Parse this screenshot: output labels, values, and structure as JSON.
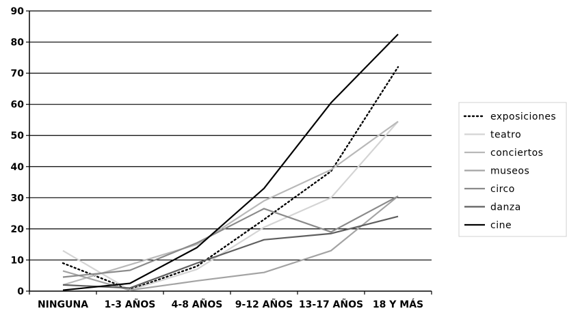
{
  "chart_data": {
    "type": "line",
    "title": "",
    "xlabel": "",
    "ylabel": "",
    "ylim": [
      0,
      90
    ],
    "yticks": [
      0,
      10,
      20,
      30,
      40,
      50,
      60,
      70,
      80,
      90
    ],
    "grid": "horizontal",
    "legend_position": "right",
    "categories": [
      "NINGUNA",
      "1-3 AÑOS",
      "4-8 AÑOS",
      "9-12 AÑOS",
      "13-17 AÑOS",
      "18 Y MÁS"
    ],
    "series": [
      {
        "name": "exposiciones",
        "color": "#000000",
        "dash": "dotted",
        "values": [
          9,
          0.5,
          8,
          23,
          38.5,
          72
        ]
      },
      {
        "name": "teatro",
        "color": "#d4d4d4",
        "dash": "solid",
        "values": [
          13,
          0.3,
          7,
          20.5,
          30,
          54.5
        ]
      },
      {
        "name": "conciertos",
        "color": "#b8b8b8",
        "dash": "solid",
        "values": [
          2,
          8.5,
          15,
          29,
          39,
          54.5
        ]
      },
      {
        "name": "museos",
        "color": "#a3a3a3",
        "dash": "solid",
        "values": [
          6.5,
          0.3,
          3.3,
          6,
          13,
          30.5
        ]
      },
      {
        "name": "circo",
        "color": "#8a8a8a",
        "dash": "solid",
        "values": [
          4.5,
          6.7,
          15.5,
          26.5,
          19,
          30.5
        ]
      },
      {
        "name": "danza",
        "color": "#5e5e5e",
        "dash": "solid",
        "values": [
          2,
          1,
          9,
          16.5,
          18.5,
          24
        ]
      },
      {
        "name": "cine",
        "color": "#000000",
        "dash": "solid",
        "values": [
          0.3,
          2.5,
          14,
          33,
          60.5,
          82.5
        ]
      }
    ]
  }
}
